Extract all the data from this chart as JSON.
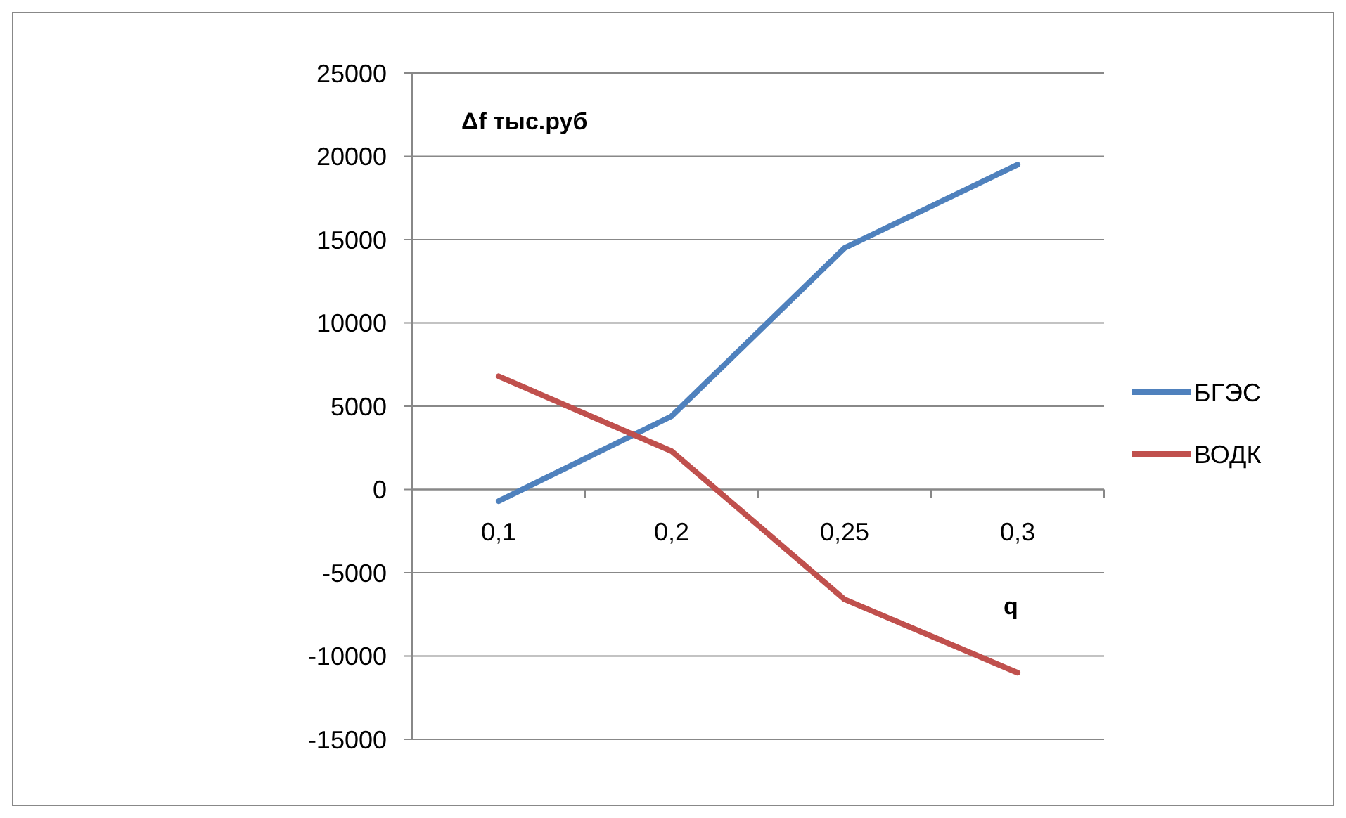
{
  "chart_data": {
    "type": "line",
    "xlabel": "q",
    "ylabel": "Δf  тыс.руб",
    "categories": [
      "0,1",
      "0,2",
      "0,25",
      "0,3"
    ],
    "series": [
      {
        "name": "БГЭС",
        "color": "#4f81bd",
        "values": [
          -700,
          4400,
          14500,
          19500
        ]
      },
      {
        "name": "ВОДК",
        "color": "#c0504d",
        "values": [
          6800,
          2300,
          -6600,
          -11000
        ]
      }
    ],
    "ylim": [
      -15000,
      25000
    ],
    "yticks": [
      -15000,
      -10000,
      -5000,
      0,
      5000,
      10000,
      15000,
      20000,
      25000
    ],
    "grid": "y",
    "legend": "right",
    "marker": "none",
    "line_style": "solid"
  }
}
